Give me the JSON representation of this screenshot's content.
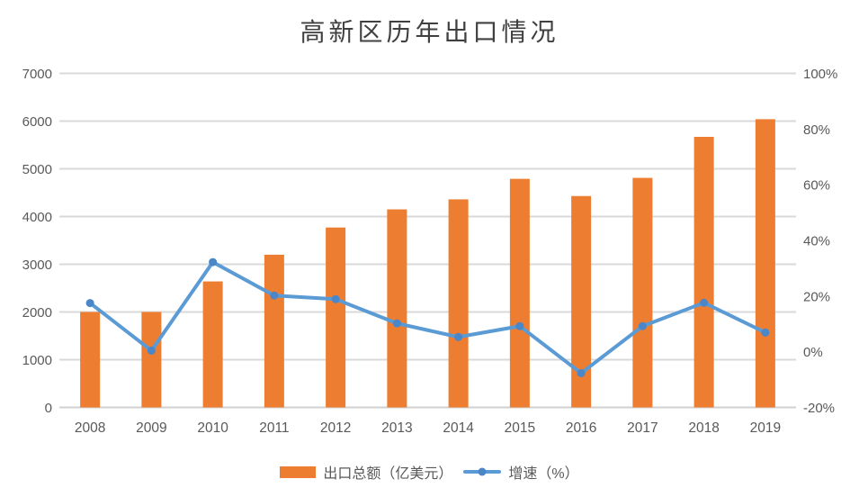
{
  "chart_data": {
    "type": "combo-bar-line",
    "title": "高新区历年出口情况",
    "categories": [
      "2008",
      "2009",
      "2010",
      "2011",
      "2012",
      "2013",
      "2014",
      "2015",
      "2016",
      "2017",
      "2018",
      "2019"
    ],
    "series": [
      {
        "name": "出口总额（亿美元）",
        "type": "bar",
        "axis": "left",
        "values": [
          2000,
          2000,
          2640,
          3200,
          3770,
          4150,
          4360,
          4790,
          4430,
          4810,
          5670,
          6040
        ]
      },
      {
        "name": "增速（%）",
        "type": "line",
        "axis": "right",
        "values": [
          17.5,
          0.4,
          32.2,
          20.2,
          18.9,
          10.2,
          5.3,
          9.2,
          -7.7,
          9.2,
          17.6,
          6.9
        ]
      }
    ],
    "left_axis": {
      "min": 0,
      "max": 7000,
      "step": 1000,
      "tick_labels": [
        "0",
        "1000",
        "2000",
        "3000",
        "4000",
        "5000",
        "6000",
        "7000"
      ]
    },
    "right_axis": {
      "min": -20,
      "max": 100,
      "step": 20,
      "tick_labels": [
        "-20%",
        "0%",
        "20%",
        "40%",
        "60%",
        "80%",
        "100%"
      ]
    },
    "grid": true,
    "legend_position": "bottom"
  },
  "colors": {
    "bar": "#ED7D31",
    "line": "#5B9BD5",
    "marker": "#4A86C8",
    "grid": "#D9D9D9",
    "axis_line": "#D0D0D0",
    "axis_text": "#595959",
    "title_text": "#404040"
  }
}
